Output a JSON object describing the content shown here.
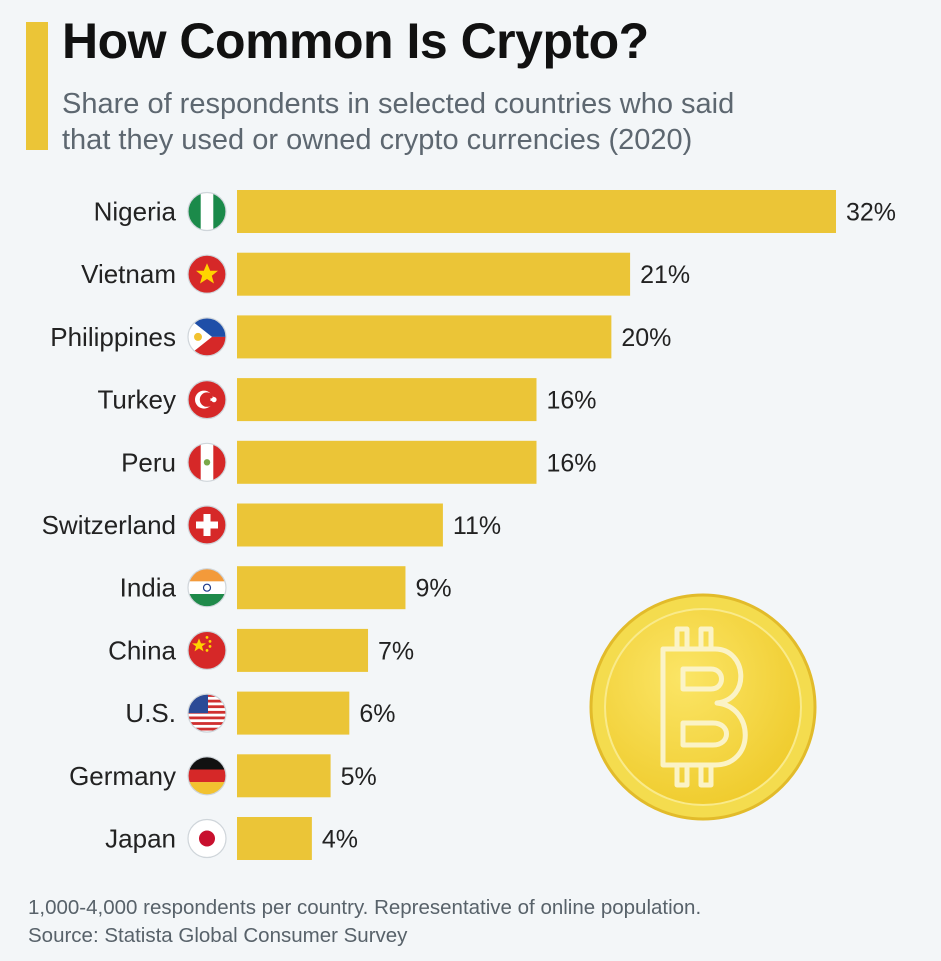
{
  "header": {
    "title": "How Common Is Crypto?",
    "subtitle_line1": "Share of respondents in selected countries who said",
    "subtitle_line2": "that they used or owned crypto currencies (2020)"
  },
  "footer": {
    "note": "1,000-4,000 respondents per country. Representative of online population.",
    "source": "Source: Statista Global Consumer Survey"
  },
  "colors": {
    "bar": "#ebc537",
    "accent": "#ebc537",
    "coin": "#f2d238"
  },
  "decoration": {
    "coin_icon": "bitcoin-coin-icon"
  },
  "chart_data": {
    "type": "bar",
    "orientation": "horizontal",
    "title": "How Common Is Crypto?",
    "subtitle": "Share of respondents in selected countries who said that they used or owned crypto currencies (2020)",
    "categories": [
      "Nigeria",
      "Vietnam",
      "Philippines",
      "Turkey",
      "Peru",
      "Switzerland",
      "India",
      "China",
      "U.S.",
      "Germany",
      "Japan"
    ],
    "values": [
      32,
      21,
      20,
      16,
      16,
      11,
      9,
      7,
      6,
      5,
      4
    ],
    "value_labels": [
      "32%",
      "21%",
      "20%",
      "16%",
      "16%",
      "11%",
      "9%",
      "7%",
      "6%",
      "5%",
      "4%"
    ],
    "flags": [
      "nigeria-flag-icon",
      "vietnam-flag-icon",
      "philippines-flag-icon",
      "turkey-flag-icon",
      "peru-flag-icon",
      "switzerland-flag-icon",
      "india-flag-icon",
      "china-flag-icon",
      "us-flag-icon",
      "germany-flag-icon",
      "japan-flag-icon"
    ],
    "unit": "%",
    "xlim": [
      0,
      32
    ],
    "grid": false,
    "legend": "none"
  }
}
